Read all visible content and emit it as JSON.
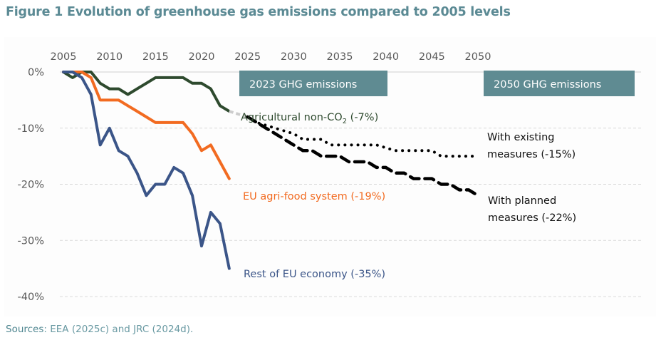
{
  "figure": {
    "title": "Figure 1 Evolution of greenhouse gas emissions compared to 2005 levels",
    "sources_label": "Sources",
    "sources_text": ": EEA (2025c) and JRC (2024d)."
  },
  "chart_data": {
    "type": "line",
    "title": "Evolution of greenhouse gas emissions compared to 2005 levels",
    "xlabel": "",
    "ylabel": "",
    "xlim": [
      2005,
      2050
    ],
    "ylim": [
      -40,
      0
    ],
    "x_ticks": [
      "2005",
      "2010",
      "2015",
      "2020",
      "2025",
      "2030",
      "2035",
      "2040",
      "2045",
      "2050"
    ],
    "y_ticks": [
      "0%",
      "-10%",
      "-20%",
      "-30%",
      "-40%"
    ],
    "y_tick_values": [
      0,
      -10,
      -20,
      -30,
      -40
    ],
    "x_axis_position": "top",
    "grid": "horizontal dashed",
    "annotation_boxes": [
      {
        "text": "2023 GHG emissions",
        "color": "#5f8b92"
      },
      {
        "text": "2050 GHG emissions",
        "color": "#5f8b92"
      }
    ],
    "series": [
      {
        "name": "Agricultural non-CO2",
        "label": "Agricultural non-CO",
        "label_sub": "2",
        "label_suffix": " (-7%)",
        "color": "#2e4a2e",
        "style": "solid",
        "x": [
          2005,
          2006,
          2007,
          2008,
          2009,
          2010,
          2011,
          2012,
          2013,
          2014,
          2015,
          2016,
          2017,
          2018,
          2019,
          2020,
          2021,
          2022,
          2023
        ],
        "values": [
          0,
          -1,
          0,
          0,
          -2,
          -3,
          -3,
          -4,
          -3,
          -2,
          -1,
          -1,
          -1,
          -1,
          -2,
          -2,
          -3,
          -6,
          -7
        ]
      },
      {
        "name": "EU agri-food system",
        "label": "EU agri-food system (-19%)",
        "color": "#f26b21",
        "style": "solid",
        "x": [
          2005,
          2006,
          2007,
          2008,
          2009,
          2010,
          2011,
          2012,
          2013,
          2014,
          2015,
          2016,
          2017,
          2018,
          2019,
          2020,
          2021,
          2022,
          2023
        ],
        "values": [
          0,
          0,
          0,
          -1,
          -5,
          -5,
          -5,
          -6,
          -7,
          -8,
          -9,
          -9,
          -9,
          -9,
          -11,
          -14,
          -13,
          -16,
          -19
        ]
      },
      {
        "name": "Rest of EU economy",
        "label": "Rest of EU economy  (-35%)",
        "color": "#3b5588",
        "style": "solid",
        "x": [
          2005,
          2006,
          2007,
          2008,
          2009,
          2010,
          2011,
          2012,
          2013,
          2014,
          2015,
          2016,
          2017,
          2018,
          2019,
          2020,
          2021,
          2022,
          2023
        ],
        "values": [
          0,
          0,
          -1,
          -4,
          -13,
          -10,
          -14,
          -15,
          -18,
          -22,
          -20,
          -20,
          -17,
          -18,
          -22,
          -31,
          -25,
          -27,
          -35
        ]
      },
      {
        "name": "Connector 2023-2025",
        "color": "#cccccc",
        "style": "dashed-gray",
        "x": [
          2023,
          2024,
          2025
        ],
        "values": [
          -7,
          -7.5,
          -8
        ]
      },
      {
        "name": "With existing measures",
        "label_lines": [
          "With existing",
          "measures (-15%)"
        ],
        "color": "#000000",
        "style": "dotted",
        "x": [
          2025,
          2026,
          2027,
          2028,
          2029,
          2030,
          2031,
          2032,
          2033,
          2034,
          2035,
          2036,
          2037,
          2038,
          2039,
          2040,
          2041,
          2042,
          2043,
          2044,
          2045,
          2046,
          2047,
          2048,
          2049,
          2050
        ],
        "values": [
          -8,
          -9,
          -9.5,
          -10,
          -10.5,
          -11,
          -12,
          -12,
          -12,
          -13,
          -13,
          -13,
          -13,
          -13,
          -13,
          -13.5,
          -14,
          -14,
          -14,
          -14,
          -14,
          -15,
          -15,
          -15,
          -15,
          -15
        ]
      },
      {
        "name": "With planned measures",
        "label_lines": [
          "With planned",
          "measures  (-22%)"
        ],
        "color": "#000000",
        "style": "dashed",
        "x": [
          2025,
          2026,
          2027,
          2028,
          2029,
          2030,
          2031,
          2032,
          2033,
          2034,
          2035,
          2036,
          2037,
          2038,
          2039,
          2040,
          2041,
          2042,
          2043,
          2044,
          2045,
          2046,
          2047,
          2048,
          2049,
          2050
        ],
        "values": [
          -8,
          -9,
          -10,
          -11,
          -12,
          -13,
          -14,
          -14,
          -15,
          -15,
          -15,
          -16,
          -16,
          -16,
          -17,
          -17,
          -18,
          -18,
          -19,
          -19,
          -19,
          -20,
          -20,
          -21,
          -21,
          -22
        ]
      }
    ]
  }
}
